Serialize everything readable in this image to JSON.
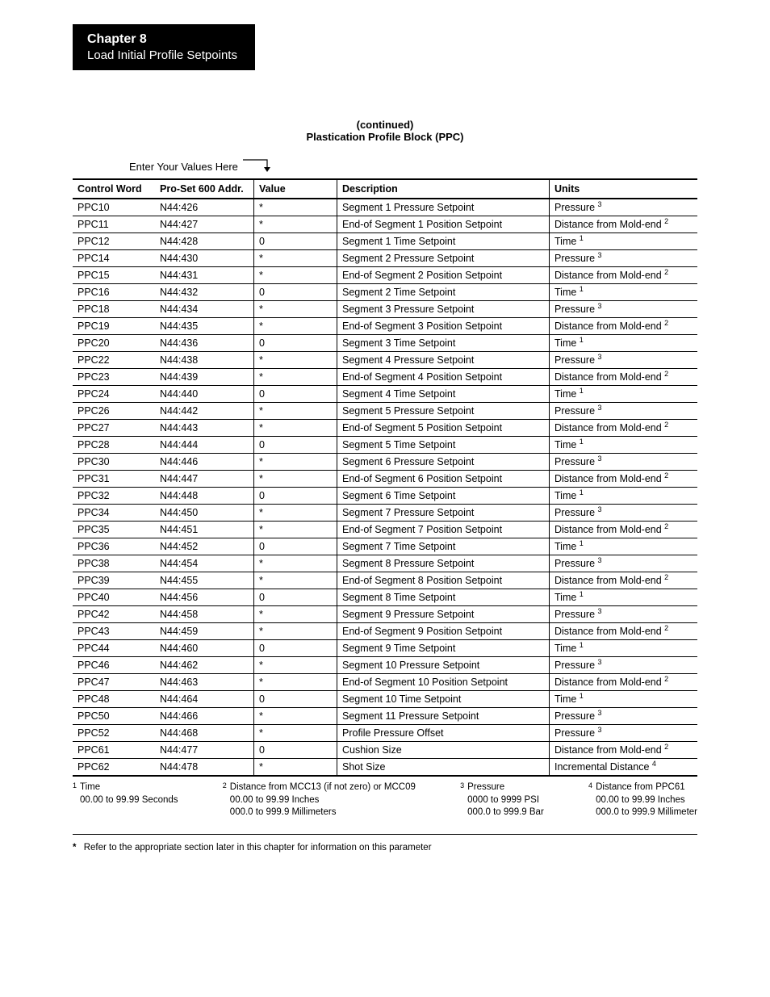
{
  "chapter": {
    "title": "Chapter  8",
    "subtitle": "Load Initial Profile Setpoints"
  },
  "tableTitle": {
    "line1": "(continued)",
    "line2": "Plastication Profile Block (PPC)"
  },
  "enterValuesLabel": "Enter Your Values Here",
  "columns": {
    "controlWord": "Control Word",
    "addr": "Pro-Set 600 Addr.",
    "value": "Value",
    "description": "Description",
    "units": "Units"
  },
  "unitsLabels": {
    "pressure": "Pressure",
    "distance": "Distance from Mold-end",
    "time": "Time",
    "incremental": "Incremental Distance"
  },
  "rows": [
    {
      "cw": "PPC10",
      "addr": "N44:426",
      "val": "*",
      "desc": "Segment 1 Pressure Setpoint",
      "u": "pressure",
      "sup": "3"
    },
    {
      "cw": "PPC11",
      "addr": "N44:427",
      "val": "*",
      "desc": "End-of Segment 1 Position Setpoint",
      "u": "distance",
      "sup": "2"
    },
    {
      "cw": "PPC12",
      "addr": "N44:428",
      "val": "0",
      "desc": "Segment 1 Time Setpoint",
      "u": "time",
      "sup": "1"
    },
    {
      "cw": "PPC14",
      "addr": "N44:430",
      "val": "*",
      "desc": "Segment 2 Pressure Setpoint",
      "u": "pressure",
      "sup": "3"
    },
    {
      "cw": "PPC15",
      "addr": "N44:431",
      "val": "*",
      "desc": "End-of Segment 2 Position Setpoint",
      "u": "distance",
      "sup": "2"
    },
    {
      "cw": "PPC16",
      "addr": "N44:432",
      "val": "0",
      "desc": "Segment 2 Time Setpoint",
      "u": "time",
      "sup": "1"
    },
    {
      "cw": "PPC18",
      "addr": "N44:434",
      "val": "*",
      "desc": "Segment 3 Pressure Setpoint",
      "u": "pressure",
      "sup": "3"
    },
    {
      "cw": "PPC19",
      "addr": "N44:435",
      "val": "*",
      "desc": "End-of Segment 3 Position Setpoint",
      "u": "distance",
      "sup": "2"
    },
    {
      "cw": "PPC20",
      "addr": "N44:436",
      "val": "0",
      "desc": "Segment 3 Time Setpoint",
      "u": "time",
      "sup": "1"
    },
    {
      "cw": "PPC22",
      "addr": "N44:438",
      "val": "*",
      "desc": "Segment 4 Pressure Setpoint",
      "u": "pressure",
      "sup": "3"
    },
    {
      "cw": "PPC23",
      "addr": "N44:439",
      "val": "*",
      "desc": "End-of Segment 4 Position Setpoint",
      "u": "distance",
      "sup": "2"
    },
    {
      "cw": "PPC24",
      "addr": "N44:440",
      "val": "0",
      "desc": "Segment 4 Time Setpoint",
      "u": "time",
      "sup": "1"
    },
    {
      "cw": "PPC26",
      "addr": "N44:442",
      "val": "*",
      "desc": "Segment 5 Pressure Setpoint",
      "u": "pressure",
      "sup": "3"
    },
    {
      "cw": "PPC27",
      "addr": "N44:443",
      "val": "*",
      "desc": "End-of Segment 5 Position Setpoint",
      "u": "distance",
      "sup": "2"
    },
    {
      "cw": "PPC28",
      "addr": "N44:444",
      "val": "0",
      "desc": "Segment 5 Time Setpoint",
      "u": "time",
      "sup": "1"
    },
    {
      "cw": "PPC30",
      "addr": "N44:446",
      "val": "*",
      "desc": "Segment 6 Pressure Setpoint",
      "u": "pressure",
      "sup": "3"
    },
    {
      "cw": "PPC31",
      "addr": "N44:447",
      "val": "*",
      "desc": "End-of Segment 6 Position Setpoint",
      "u": "distance",
      "sup": "2"
    },
    {
      "cw": "PPC32",
      "addr": "N44:448",
      "val": "0",
      "desc": "Segment 6 Time Setpoint",
      "u": "time",
      "sup": "1"
    },
    {
      "cw": "PPC34",
      "addr": "N44:450",
      "val": "*",
      "desc": "Segment 7 Pressure Setpoint",
      "u": "pressure",
      "sup": "3"
    },
    {
      "cw": "PPC35",
      "addr": "N44:451",
      "val": "*",
      "desc": "End-of Segment 7 Position Setpoint",
      "u": "distance",
      "sup": "2"
    },
    {
      "cw": "PPC36",
      "addr": "N44:452",
      "val": "0",
      "desc": "Segment 7 Time Setpoint",
      "u": "time",
      "sup": "1"
    },
    {
      "cw": "PPC38",
      "addr": "N44:454",
      "val": "*",
      "desc": "Segment 8 Pressure Setpoint",
      "u": "pressure",
      "sup": "3"
    },
    {
      "cw": "PPC39",
      "addr": "N44:455",
      "val": "*",
      "desc": "End-of Segment 8 Position Setpoint",
      "u": "distance",
      "sup": "2"
    },
    {
      "cw": "PPC40",
      "addr": "N44:456",
      "val": "0",
      "desc": "Segment 8 Time Setpoint",
      "u": "time",
      "sup": "1"
    },
    {
      "cw": "PPC42",
      "addr": "N44:458",
      "val": "*",
      "desc": "Segment 9 Pressure Setpoint",
      "u": "pressure",
      "sup": "3"
    },
    {
      "cw": "PPC43",
      "addr": "N44:459",
      "val": "*",
      "desc": "End-of Segment 9 Position Setpoint",
      "u": "distance",
      "sup": "2"
    },
    {
      "cw": "PPC44",
      "addr": "N44:460",
      "val": "0",
      "desc": "Segment 9 Time Setpoint",
      "u": "time",
      "sup": "1"
    },
    {
      "cw": "PPC46",
      "addr": "N44:462",
      "val": "*",
      "desc": "Segment 10 Pressure Setpoint",
      "u": "pressure",
      "sup": "3"
    },
    {
      "cw": "PPC47",
      "addr": "N44:463",
      "val": "*",
      "desc": "End-of Segment 10 Position Setpoint",
      "u": "distance",
      "sup": "2"
    },
    {
      "cw": "PPC48",
      "addr": "N44:464",
      "val": "0",
      "desc": "Segment 10 Time Setpoint",
      "u": "time",
      "sup": "1"
    },
    {
      "cw": "PPC50",
      "addr": "N44:466",
      "val": "*",
      "desc": "Segment 11 Pressure Setpoint",
      "u": "pressure",
      "sup": "3"
    },
    {
      "cw": "PPC52",
      "addr": "N44:468",
      "val": "*",
      "desc": "Profile Pressure Offset",
      "u": "pressure",
      "sup": "3"
    },
    {
      "cw": "PPC61",
      "addr": "N44:477",
      "val": "0",
      "desc": "Cushion Size",
      "u": "distance",
      "sup": "2"
    },
    {
      "cw": "PPC62",
      "addr": "N44:478",
      "val": "*",
      "desc": "Shot Size",
      "u": "incremental",
      "sup": "4"
    }
  ],
  "footnotes": {
    "f1": {
      "n": "1",
      "l1": "Time",
      "l2": "00.00 to 99.99 Seconds"
    },
    "f2": {
      "n": "2",
      "l1": "Distance from MCC13 (if not zero) or MCC09",
      "l2": "00.00 to 99.99 Inches",
      "l3": "000.0 to 999.9 Millimeters"
    },
    "f3": {
      "n": "3",
      "l1": "Pressure",
      "l2": "0000 to 9999 PSI",
      "l3": "000.0 to 999.9 Bar"
    },
    "f4": {
      "n": "4",
      "l1": "Distance from PPC61",
      "l2": "00.00 to 99.99 Inches",
      "l3": "000.0 to 999.9 Millimeter"
    }
  },
  "starNote": "Refer to the appropriate section later in this chapter for information on this parameter"
}
